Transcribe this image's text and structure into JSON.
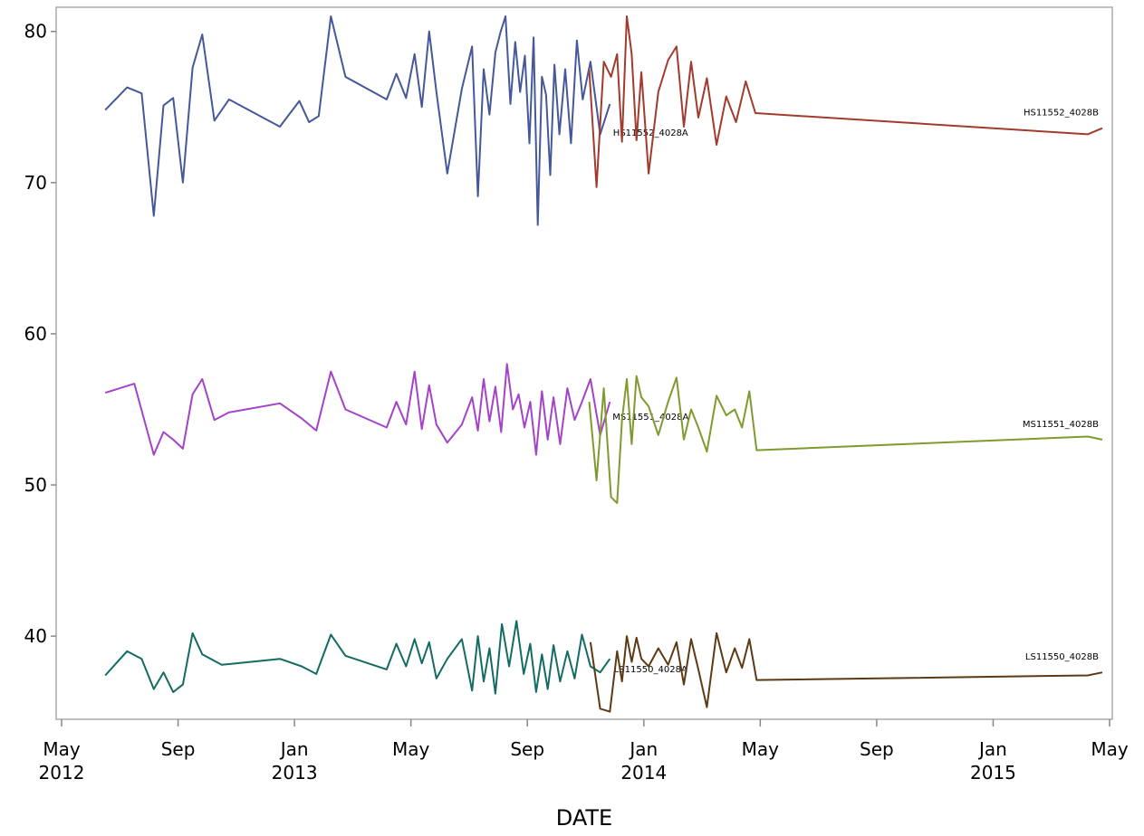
{
  "chart_data": {
    "type": "line",
    "x_label": "DATE",
    "xlim": [
      "2012-05",
      "2015-05"
    ],
    "xticks": [
      {
        "value": "2012-05",
        "label": "May 2012"
      },
      {
        "value": "2012-09",
        "label": "Sep"
      },
      {
        "value": "2013-01",
        "label": "Jan 2013"
      },
      {
        "value": "2013-05",
        "label": "May"
      },
      {
        "value": "2013-09",
        "label": "Sep"
      },
      {
        "value": "2014-01",
        "label": "Jan 2014"
      },
      {
        "value": "2014-05",
        "label": "May"
      },
      {
        "value": "2014-09",
        "label": "Sep"
      },
      {
        "value": "2015-01",
        "label": "Jan 2015"
      },
      {
        "value": "2015-05",
        "label": "May"
      }
    ],
    "ylim": [
      34.5,
      81.6
    ],
    "yticks": [
      40,
      50,
      60,
      70,
      80
    ],
    "series": [
      {
        "name": "HS11552_4028A",
        "color": "#44589a",
        "x": [
          "2012-06",
          "2012-07",
          "2012-07",
          "2012-08",
          "2012-08",
          "2012-08",
          "2012-09",
          "2012-09",
          "2012-09",
          "2012-10",
          "2012-10",
          "2012-12",
          "2013-01",
          "2013-01",
          "2013-01",
          "2013-02",
          "2013-02",
          "2013-04",
          "2013-04",
          "2013-04",
          "2013-05",
          "2013-05",
          "2013-05",
          "2013-05",
          "2013-06",
          "2013-06",
          "2013-07",
          "2013-07",
          "2013-07",
          "2013-07",
          "2013-07",
          "2013-08",
          "2013-08",
          "2013-08",
          "2013-08",
          "2013-08",
          "2013-08",
          "2013-09",
          "2013-09",
          "2013-09",
          "2013-09",
          "2013-09",
          "2013-09",
          "2013-09",
          "2013-10",
          "2013-10",
          "2013-10",
          "2013-10",
          "2013-10",
          "2013-11",
          "2013-11",
          "2013-11"
        ],
        "values": [
          74.8,
          76.3,
          75.9,
          67.8,
          75.1,
          75.6,
          70.0,
          77.6,
          79.8,
          74.1,
          75.5,
          73.7,
          75.4,
          74.0,
          74.4,
          81.0,
          77.0,
          75.5,
          77.2,
          75.6,
          78.5,
          75.0,
          80.0,
          76.0,
          70.6,
          76.2,
          79.0,
          69.1,
          77.5,
          74.5,
          78.6,
          80.0,
          81.0,
          75.2,
          79.3,
          76.0,
          78.4,
          72.6,
          79.6,
          67.2,
          77.0,
          75.8,
          70.5,
          77.8,
          73.2,
          77.5,
          72.6,
          79.4,
          75.5,
          78.0,
          73.2,
          75.2
        ]
      },
      {
        "name": "HS11552_4028B",
        "color": "#a23a2e",
        "x": [
          "2013-11",
          "2013-11",
          "2013-11",
          "2013-11",
          "2013-12",
          "2013-12",
          "2013-12",
          "2013-12",
          "2013-12",
          "2013-12",
          "2014-01",
          "2014-01",
          "2014-01",
          "2014-02",
          "2014-02",
          "2014-02",
          "2014-02",
          "2014-03",
          "2014-03",
          "2014-03",
          "2014-04",
          "2014-04",
          "2014-04",
          "2015-04",
          "2015-04"
        ],
        "values": [
          77.5,
          69.7,
          78.0,
          77.0,
          78.5,
          72.7,
          81.0,
          78.5,
          72.8,
          77.3,
          70.6,
          76.0,
          78.1,
          79.0,
          73.7,
          78.0,
          74.3,
          76.9,
          72.5,
          75.7,
          74.0,
          76.7,
          74.6,
          73.2,
          73.6
        ]
      },
      {
        "name": "MS11551_4028A",
        "color": "#a442c8",
        "x": [
          "2012-06",
          "2012-07",
          "2012-08",
          "2012-08",
          "2012-08",
          "2012-09",
          "2012-09",
          "2012-09",
          "2012-10",
          "2012-10",
          "2012-12",
          "2013-01",
          "2013-01",
          "2013-02",
          "2013-02",
          "2013-04",
          "2013-04",
          "2013-04",
          "2013-05",
          "2013-05",
          "2013-05",
          "2013-05",
          "2013-06",
          "2013-06",
          "2013-07",
          "2013-07",
          "2013-07",
          "2013-07",
          "2013-07",
          "2013-08",
          "2013-08",
          "2013-08",
          "2013-08",
          "2013-08",
          "2013-09",
          "2013-09",
          "2013-09",
          "2013-09",
          "2013-09",
          "2013-10",
          "2013-10",
          "2013-10",
          "2013-10",
          "2013-11",
          "2013-11",
          "2013-11"
        ],
        "values": [
          56.1,
          56.7,
          52.0,
          53.5,
          53.0,
          52.4,
          56.0,
          57.0,
          54.3,
          54.8,
          55.4,
          54.4,
          53.6,
          57.5,
          55.0,
          53.8,
          55.5,
          54.0,
          57.5,
          53.7,
          56.6,
          54.0,
          52.8,
          54.0,
          55.8,
          53.6,
          57.0,
          54.2,
          56.5,
          53.5,
          58.0,
          55.0,
          56.0,
          53.8,
          55.5,
          52.0,
          56.2,
          53.0,
          55.8,
          52.7,
          56.4,
          54.3,
          55.5,
          57.0,
          53.3,
          55.5
        ]
      },
      {
        "name": "MS11551_4028B",
        "color": "#7f9a2e",
        "x": [
          "2013-11",
          "2013-11",
          "2013-11",
          "2013-11",
          "2013-12",
          "2013-12",
          "2013-12",
          "2013-12",
          "2013-12",
          "2013-12",
          "2014-01",
          "2014-01",
          "2014-01",
          "2014-02",
          "2014-02",
          "2014-02",
          "2014-02",
          "2014-03",
          "2014-03",
          "2014-03",
          "2014-04",
          "2014-04",
          "2014-04",
          "2014-04",
          "2015-04",
          "2015-04"
        ],
        "values": [
          55.5,
          50.3,
          56.4,
          49.2,
          48.8,
          54.3,
          57.0,
          52.7,
          57.2,
          55.8,
          55.2,
          53.3,
          55.5,
          57.1,
          53.0,
          55.0,
          53.8,
          52.2,
          55.9,
          54.6,
          55.0,
          53.8,
          56.2,
          52.3,
          53.2,
          53.0
        ]
      },
      {
        "name": "LS11550_4028A",
        "color": "#146b63",
        "x": [
          "2012-06",
          "2012-07",
          "2012-07",
          "2012-08",
          "2012-08",
          "2012-08",
          "2012-09",
          "2012-09",
          "2012-09",
          "2012-10",
          "2012-12",
          "2013-01",
          "2013-01",
          "2013-02",
          "2013-02",
          "2013-04",
          "2013-04",
          "2013-04",
          "2013-05",
          "2013-05",
          "2013-05",
          "2013-05",
          "2013-06",
          "2013-06",
          "2013-07",
          "2013-07",
          "2013-07",
          "2013-07",
          "2013-07",
          "2013-08",
          "2013-08",
          "2013-08",
          "2013-08",
          "2013-09",
          "2013-09",
          "2013-09",
          "2013-09",
          "2013-09",
          "2013-10",
          "2013-10",
          "2013-10",
          "2013-10",
          "2013-11",
          "2013-11",
          "2013-11"
        ],
        "values": [
          37.4,
          39.0,
          38.5,
          36.5,
          37.6,
          36.3,
          36.8,
          40.2,
          38.8,
          38.1,
          38.5,
          38.0,
          37.5,
          40.1,
          38.7,
          37.8,
          39.5,
          38.0,
          39.8,
          38.2,
          39.6,
          37.2,
          38.5,
          39.8,
          36.4,
          40.0,
          37.0,
          39.2,
          36.2,
          40.8,
          38.0,
          41.0,
          37.5,
          39.5,
          36.3,
          38.8,
          36.5,
          39.4,
          37.0,
          39.0,
          37.2,
          40.1,
          38.0,
          37.6,
          38.5
        ]
      },
      {
        "name": "LS11550_4028B",
        "color": "#5e3a14",
        "x": [
          "2013-11",
          "2013-11",
          "2013-11",
          "2013-12",
          "2013-12",
          "2013-12",
          "2013-12",
          "2013-12",
          "2013-12",
          "2014-01",
          "2014-01",
          "2014-01",
          "2014-02",
          "2014-02",
          "2014-02",
          "2014-02",
          "2014-03",
          "2014-03",
          "2014-03",
          "2014-04",
          "2014-04",
          "2014-04",
          "2014-04",
          "2015-04",
          "2015-04"
        ],
        "values": [
          39.6,
          35.2,
          35.0,
          39.0,
          37.0,
          40.0,
          38.3,
          39.9,
          38.5,
          38.0,
          39.2,
          38.1,
          39.6,
          36.8,
          39.8,
          37.8,
          35.3,
          40.2,
          37.6,
          39.2,
          37.9,
          39.8,
          37.1,
          37.4,
          37.6
        ]
      }
    ]
  }
}
